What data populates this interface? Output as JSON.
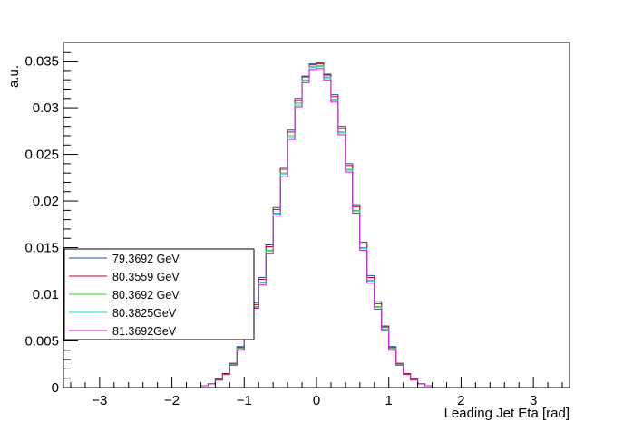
{
  "chart_data": {
    "type": "line",
    "drawstyle": "steps",
    "title": "",
    "xlabel": "Leading Jet Eta [rad]",
    "ylabel": "a.u.",
    "xlim": [
      -3.5,
      3.5
    ],
    "ylim": [
      0,
      0.037
    ],
    "x_ticks": [
      -3,
      -2,
      -1,
      0,
      1,
      2,
      3
    ],
    "x_tick_labels": [
      "−3",
      "−2",
      "−1",
      "0",
      "1",
      "2",
      "3"
    ],
    "y_ticks": [
      0,
      0.005,
      0.01,
      0.015,
      0.02,
      0.025,
      0.03,
      0.035
    ],
    "y_tick_labels": [
      "0",
      "0.005",
      "0.01",
      "0.015",
      "0.02",
      "0.025",
      "0.03",
      "0.035"
    ],
    "grid": false,
    "legend_position": "bottom-left",
    "bin_edges": [
      -1.6,
      -1.5,
      -1.4,
      -1.3,
      -1.2,
      -1.1,
      -1.0,
      -0.9,
      -0.8,
      -0.7,
      -0.6,
      -0.5,
      -0.4,
      -0.3,
      -0.2,
      -0.1,
      0.0,
      0.1,
      0.2,
      0.3,
      0.4,
      0.5,
      0.6,
      0.7,
      0.8,
      0.9,
      1.0,
      1.1,
      1.2,
      1.3,
      1.4,
      1.5,
      1.6
    ],
    "series": [
      {
        "name": "79.3692 GeV",
        "color": "#1f4e9c",
        "values": [
          0.0002,
          0.0004,
          0.0009,
          0.0015,
          0.0026,
          0.0044,
          0.0066,
          0.0091,
          0.0118,
          0.0153,
          0.0193,
          0.0236,
          0.0276,
          0.031,
          0.0334,
          0.0347,
          0.0348,
          0.0336,
          0.0314,
          0.028,
          0.024,
          0.0196,
          0.0156,
          0.012,
          0.0092,
          0.0066,
          0.0044,
          0.0026,
          0.0015,
          0.0009,
          0.0004,
          0.0002
        ]
      },
      {
        "name": "80.3559 GeV",
        "color": "#c0002a",
        "values": [
          0.0002,
          0.0004,
          0.0009,
          0.0015,
          0.0026,
          0.0043,
          0.0065,
          0.0089,
          0.0116,
          0.0151,
          0.0191,
          0.0234,
          0.0274,
          0.0308,
          0.0333,
          0.0346,
          0.0347,
          0.0335,
          0.0312,
          0.0278,
          0.0238,
          0.0194,
          0.0154,
          0.0118,
          0.009,
          0.0065,
          0.0043,
          0.0026,
          0.0015,
          0.0009,
          0.0004,
          0.0002
        ]
      },
      {
        "name": "80.3692 GeV",
        "color": "#2ed12e",
        "values": [
          0.0002,
          0.0004,
          0.0008,
          0.0014,
          0.0025,
          0.0042,
          0.0063,
          0.0087,
          0.0113,
          0.0147,
          0.0187,
          0.023,
          0.027,
          0.0305,
          0.033,
          0.0344,
          0.0345,
          0.0333,
          0.0309,
          0.0274,
          0.0234,
          0.019,
          0.015,
          0.0115,
          0.0087,
          0.0063,
          0.0042,
          0.0025,
          0.0014,
          0.0008,
          0.0004,
          0.0002
        ]
      },
      {
        "name": "80.3825GeV",
        "color": "#22d3d3",
        "values": [
          0.0002,
          0.0004,
          0.0008,
          0.0014,
          0.0024,
          0.0041,
          0.0062,
          0.0086,
          0.0112,
          0.0146,
          0.0186,
          0.0229,
          0.0268,
          0.0303,
          0.0329,
          0.0343,
          0.0344,
          0.0332,
          0.0308,
          0.0273,
          0.0233,
          0.0189,
          0.0149,
          0.0114,
          0.0086,
          0.0062,
          0.0041,
          0.0024,
          0.0014,
          0.0008,
          0.0004,
          0.0002
        ]
      },
      {
        "name": "81.3692GeV",
        "color": "#d40fd4",
        "values": [
          0.0002,
          0.0004,
          0.0008,
          0.0014,
          0.0024,
          0.004,
          0.0061,
          0.0085,
          0.011,
          0.0144,
          0.0184,
          0.0226,
          0.0266,
          0.0301,
          0.0327,
          0.0341,
          0.0342,
          0.033,
          0.0306,
          0.0271,
          0.0231,
          0.0187,
          0.0147,
          0.0112,
          0.0084,
          0.0061,
          0.004,
          0.0024,
          0.0014,
          0.0008,
          0.0004,
          0.0002
        ]
      }
    ]
  }
}
